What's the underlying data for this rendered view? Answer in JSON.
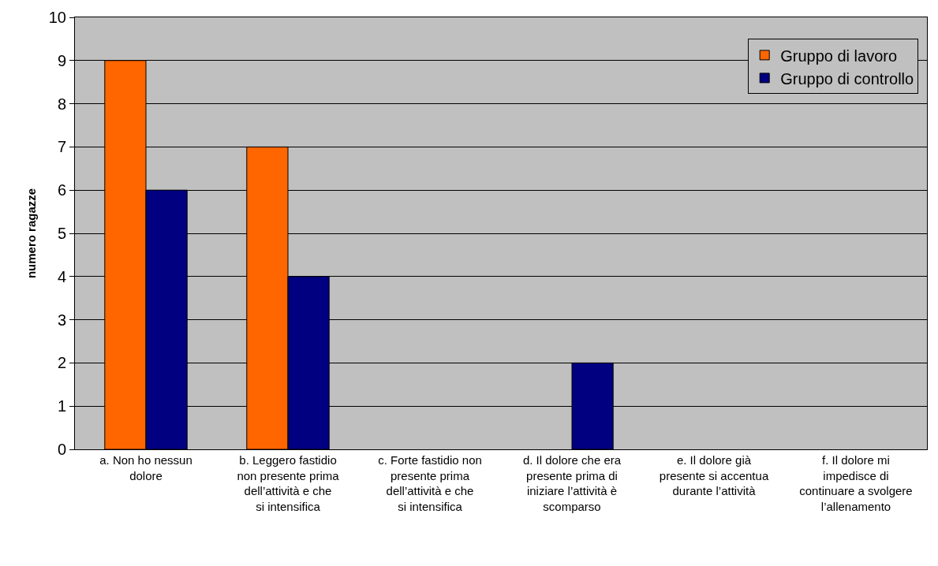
{
  "chart_data": {
    "type": "bar",
    "ylabel": "numero ragazze",
    "categories": [
      "a. Non ho nessun dolore",
      "b. Leggero fastidio non presente prima dell’attività e che si intensifica",
      "c. Forte fastidio non presente prima dell’attività e che si intensifica",
      "d. Il dolore che era presente prima di iniziare l’attività è scomparso",
      "e. Il dolore già presente si accentua durante l’attività",
      "f. Il dolore mi impedisce di continuare a svolgere l’allenamento"
    ],
    "series": [
      {
        "name": "Gruppo di lavoro",
        "color": "#ff6600",
        "values": [
          9,
          7,
          0,
          0,
          0,
          0
        ]
      },
      {
        "name": "Gruppo di controllo",
        "color": "#000080",
        "values": [
          6,
          4,
          0,
          2,
          0,
          0
        ]
      }
    ],
    "ylim": [
      0,
      10
    ],
    "yticks": [
      0,
      1,
      2,
      3,
      4,
      5,
      6,
      7,
      8,
      9,
      10
    ],
    "grid": "y",
    "legend": "top right"
  }
}
